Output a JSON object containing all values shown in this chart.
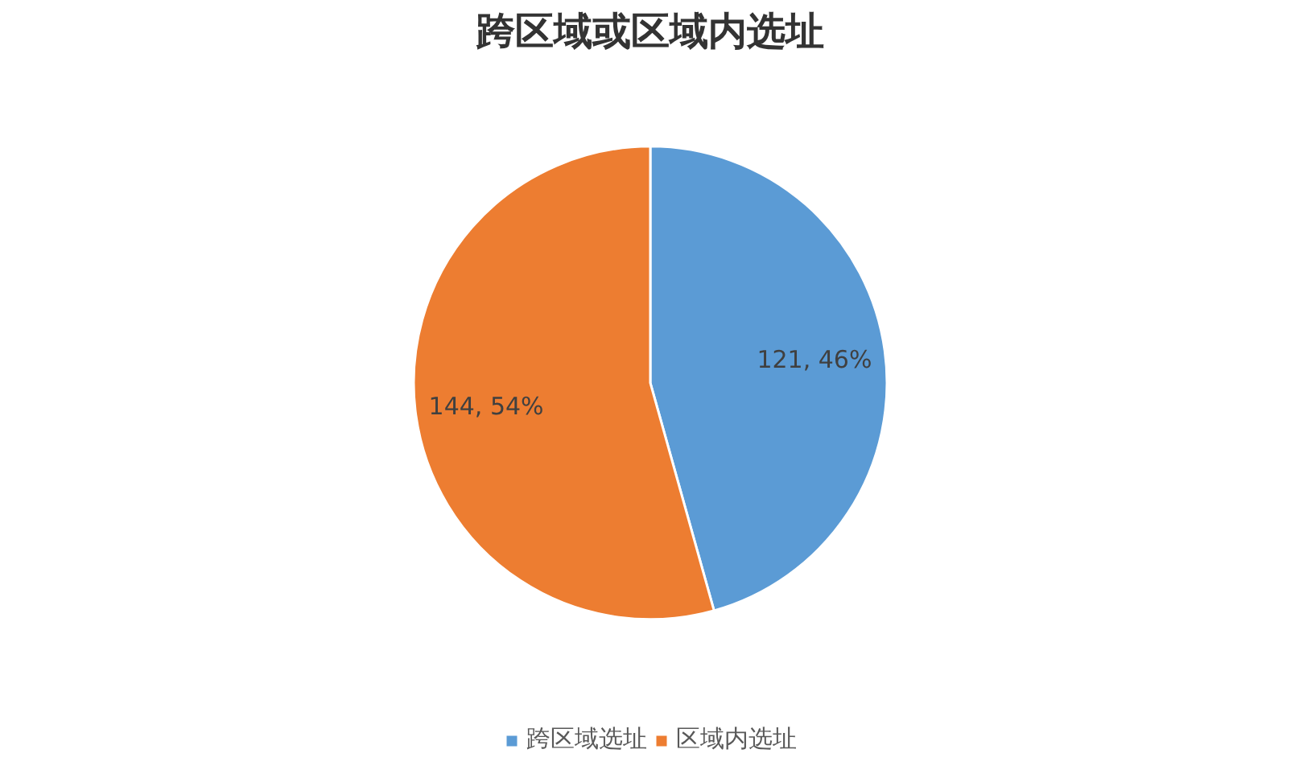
{
  "chart_data": {
    "type": "pie",
    "title": "跨区域或区域内选址",
    "categories": [
      "跨区域选址",
      "区域内选址"
    ],
    "values": [
      121,
      144
    ],
    "colors": [
      "#5b9bd5",
      "#ed7d31"
    ],
    "value_labels": [
      "121, 46%",
      "144, 54%"
    ],
    "legend": "bottom"
  }
}
